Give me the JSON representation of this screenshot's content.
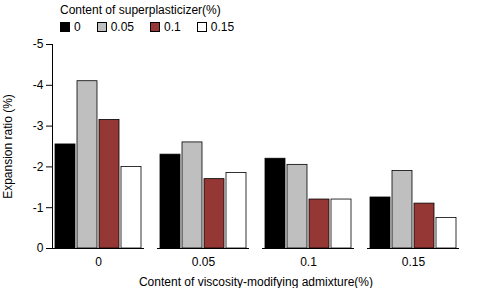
{
  "chart_data": {
    "type": "bar",
    "x_label": "Content of viscosity-modifying admixture(%)",
    "y_label": "Expansion ratio (%)",
    "legend_title": "Content of superplasticizer(%)",
    "legend": "top",
    "categories": [
      "0",
      "0.05",
      "0.1",
      "0.15"
    ],
    "series": [
      {
        "name": "0",
        "color": "#000000",
        "values": [
          -2.55,
          -2.3,
          -2.2,
          -1.25
        ]
      },
      {
        "name": "0.05",
        "color": "#bfbfbf",
        "values": [
          -4.1,
          -2.6,
          -2.05,
          -1.9
        ]
      },
      {
        "name": "0.1",
        "color": "#953735",
        "values": [
          -3.15,
          -1.7,
          -1.2,
          -1.1
        ]
      },
      {
        "name": "0.15",
        "color": "#ffffff",
        "values": [
          -2.0,
          -1.85,
          -1.2,
          -0.75
        ]
      }
    ],
    "ylim": [
      0,
      -5
    ],
    "yticks": [
      -5,
      -4,
      -3,
      -2,
      -1,
      0
    ],
    "grid": false
  }
}
